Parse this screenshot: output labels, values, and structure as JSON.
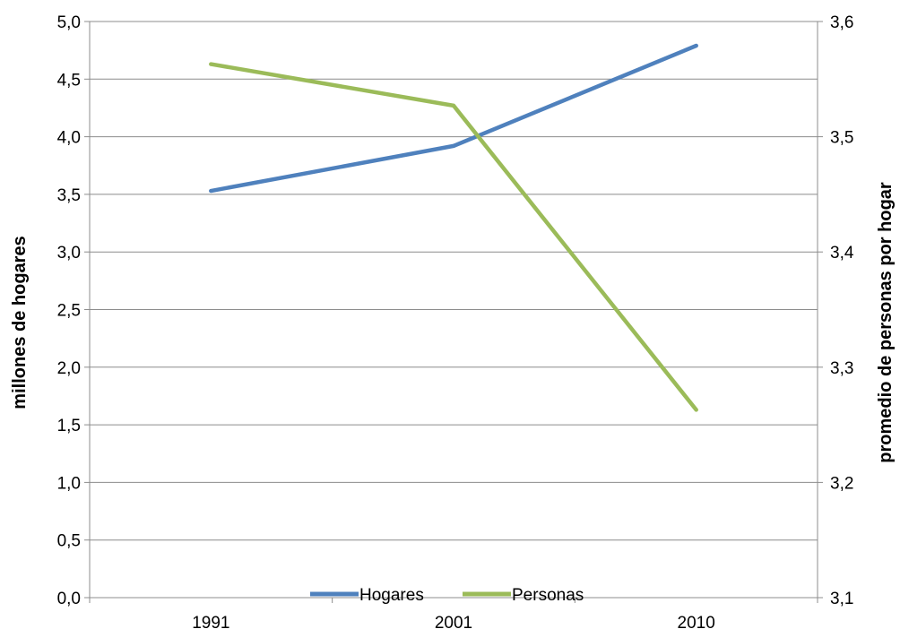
{
  "chart_data": {
    "type": "line",
    "categories": [
      "1991",
      "2001",
      "2010"
    ],
    "series": [
      {
        "name": "Hogares",
        "axis": "left",
        "color": "#4F81BD",
        "values": [
          3.53,
          3.92,
          4.79
        ]
      },
      {
        "name": "Personas",
        "axis": "right",
        "color": "#9BBB59",
        "values": [
          3.563,
          3.527,
          3.263
        ]
      }
    ],
    "ylabel_left": "millones  de hogares",
    "ylabel_right": "promedio de personas  por hogar",
    "ylim_left": [
      0,
      5
    ],
    "ylim_right": [
      3.1,
      3.6
    ],
    "yticks_left": [
      "0,0",
      "0,5",
      "1,0",
      "1,5",
      "2,0",
      "2,5",
      "3,0",
      "3,5",
      "4,0",
      "4,5",
      "5,0"
    ],
    "yticks_right": [
      "3,1",
      "3,2",
      "3,3",
      "3,4",
      "3,5",
      "3,6"
    ],
    "grid": true,
    "legend_position": "bottom"
  }
}
